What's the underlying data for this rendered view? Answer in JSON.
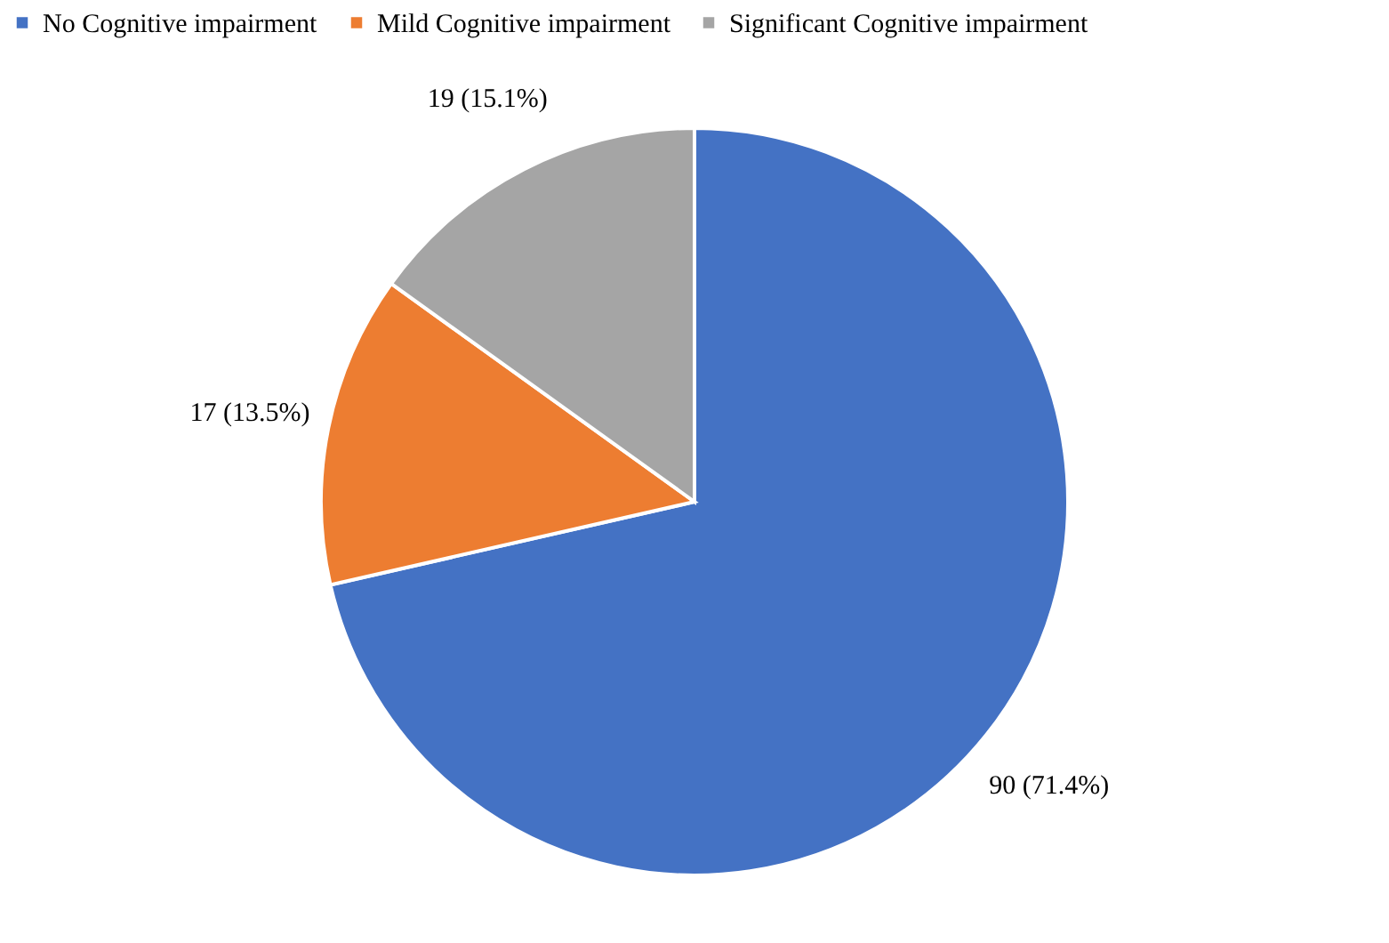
{
  "chart_data": {
    "type": "pie",
    "categories": [
      "No Cognitive impairment",
      "Mild Cognitive impairment",
      "Significant Cognitive impairment"
    ],
    "values": [
      90,
      17,
      19
    ],
    "colors": [
      "#4472c4",
      "#ed7d31",
      "#a5a5a5"
    ],
    "value_labels": [
      "90 (71.4%)",
      "17 (13.5%)",
      "19 (15.1%)"
    ],
    "legend": "top"
  }
}
